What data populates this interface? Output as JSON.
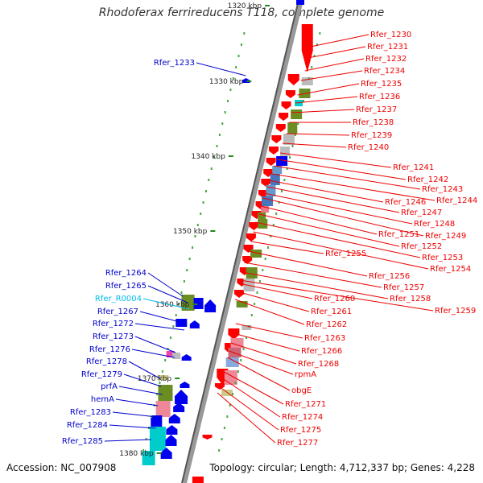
{
  "title": "Rhodoferax ferrireducens T118, complete genome",
  "accession": "Accession: NC_007908",
  "summary": "Topology: circular; Length: 4,712,337 bp; Genes: 4,228",
  "colors": {
    "forward_label": "#0000cc",
    "reverse_label": "#ee0000",
    "rna_label": "#00bbee",
    "backbone": "#888888",
    "tick": "#228822"
  },
  "scale": {
    "unit": "kbp",
    "ticks": [
      "1320 kbp",
      "1330 kbp",
      "1340 kbp",
      "1350 kbp",
      "1360 kbp",
      "1370 kbp",
      "1380 kbp"
    ]
  },
  "left_labels": [
    {
      "text": "Rfer_1233",
      "type": "gene"
    },
    {
      "text": "Rfer_1264",
      "type": "gene"
    },
    {
      "text": "Rfer_1265",
      "type": "gene"
    },
    {
      "text": "Rfer_R0004",
      "type": "rna"
    },
    {
      "text": "Rfer_1267",
      "type": "gene"
    },
    {
      "text": "Rfer_1272",
      "type": "gene"
    },
    {
      "text": "Rfer_1273",
      "type": "gene"
    },
    {
      "text": "Rfer_1276",
      "type": "gene"
    },
    {
      "text": "Rfer_1278",
      "type": "gene"
    },
    {
      "text": "Rfer_1279",
      "type": "gene"
    },
    {
      "text": "prfA",
      "type": "gene"
    },
    {
      "text": "hemA",
      "type": "gene"
    },
    {
      "text": "Rfer_1283",
      "type": "gene"
    },
    {
      "text": "Rfer_1284",
      "type": "gene"
    },
    {
      "text": "Rfer_1285",
      "type": "gene"
    }
  ],
  "right_labels": [
    "Rfer_1230",
    "Rfer_1231",
    "Rfer_1232",
    "Rfer_1234",
    "Rfer_1235",
    "Rfer_1236",
    "Rfer_1237",
    "Rfer_1238",
    "Rfer_1239",
    "Rfer_1240",
    "Rfer_1241",
    "Rfer_1242",
    "Rfer_1243",
    "Rfer_1244",
    "Rfer_1246",
    "Rfer_1247",
    "Rfer_1248",
    "Rfer_1249",
    "Rfer_1251",
    "Rfer_1252",
    "Rfer_1253",
    "Rfer_1254",
    "Rfer_1255",
    "Rfer_1256",
    "Rfer_1257",
    "Rfer_1258",
    "Rfer_1259",
    "Rfer_1260",
    "Rfer_1261",
    "Rfer_1262",
    "Rfer_1263",
    "Rfer_1266",
    "Rfer_1268",
    "rpmA",
    "obgE",
    "Rfer_1271",
    "Rfer_1274",
    "Rfer_1275",
    "Rfer_1277"
  ]
}
